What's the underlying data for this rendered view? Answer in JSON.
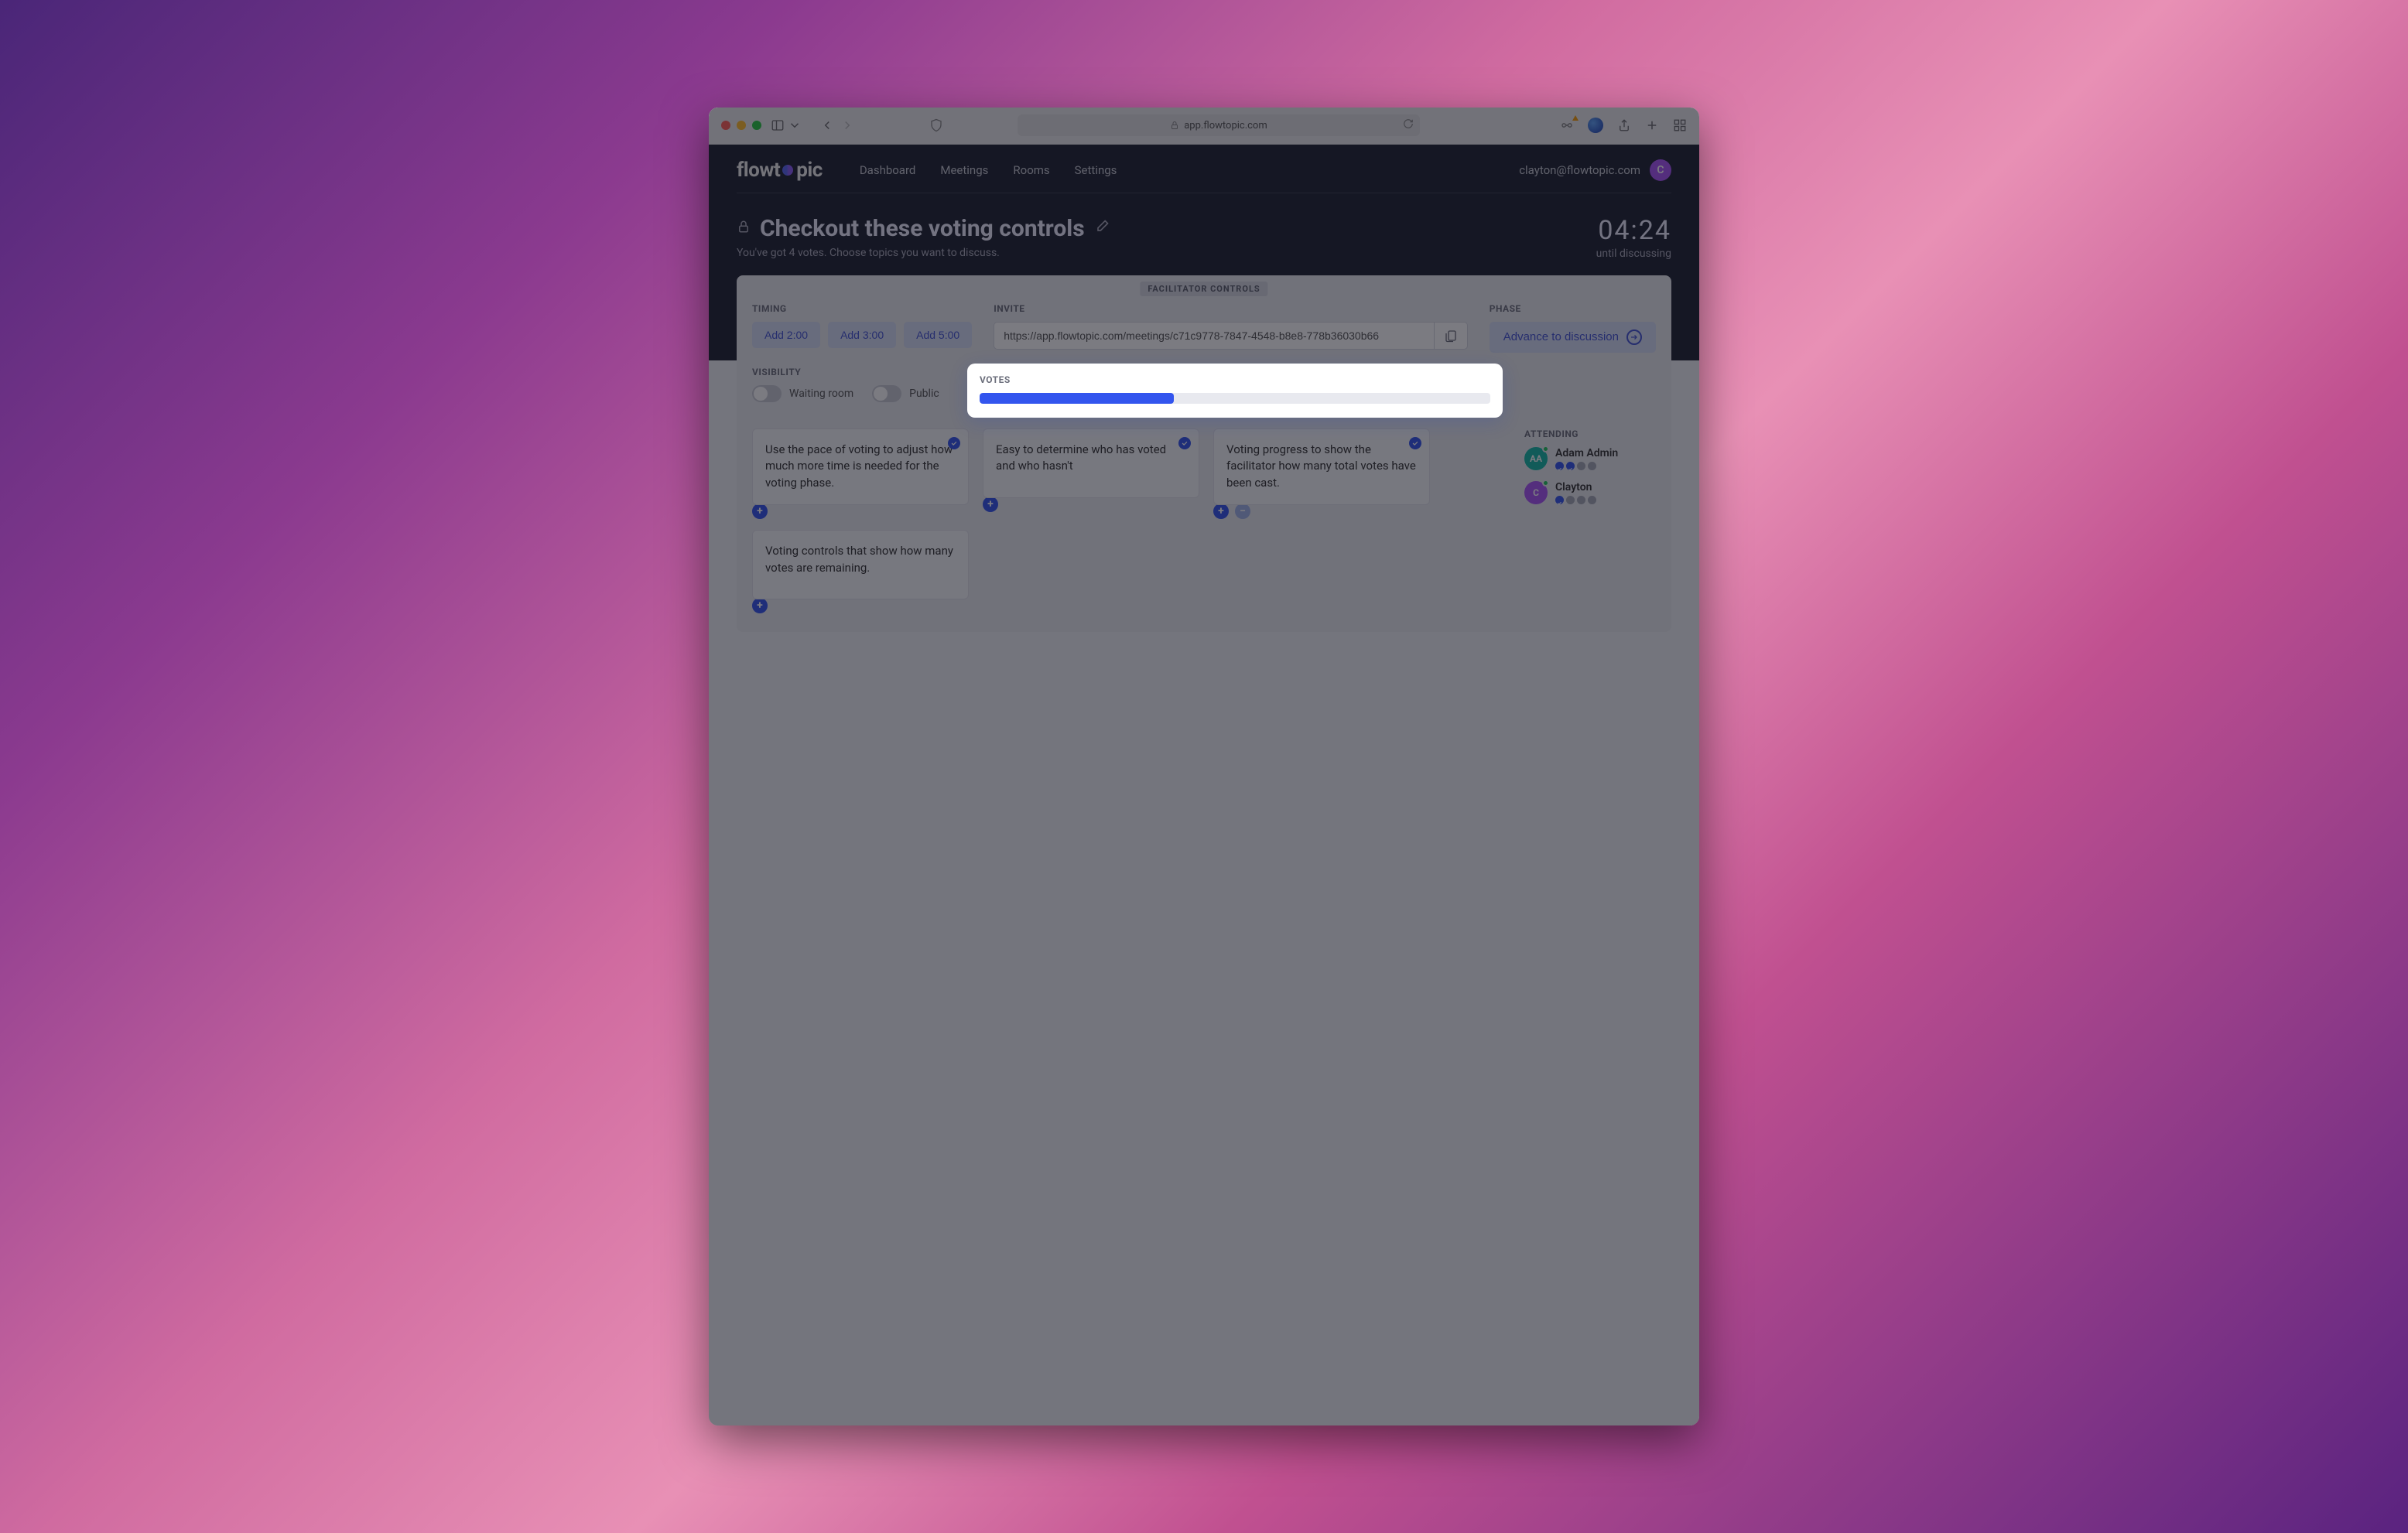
{
  "browser": {
    "url_host": "app.flowtopic.com"
  },
  "nav": {
    "logo_pre": "flowt",
    "logo_post": "pic",
    "links": [
      "Dashboard",
      "Meetings",
      "Rooms",
      "Settings"
    ],
    "user_email": "clayton@flowtopic.com",
    "user_initial": "C"
  },
  "header": {
    "title": "Checkout these voting controls",
    "subtitle": "You've got 4 votes. Choose topics you want to discuss.",
    "timer_value": "04:24",
    "timer_label": "until discussing"
  },
  "controls": {
    "facilitator_tag": "FACILITATOR CONTROLS",
    "timing_label": "TIMING",
    "timing_buttons": [
      "Add 2:00",
      "Add 3:00",
      "Add 5:00"
    ],
    "invite_label": "INVITE",
    "invite_url": "https://app.flowtopic.com/meetings/c71c9778-7847-4548-b8e8-778b36030b66",
    "phase_label": "PHASE",
    "phase_button": "Advance to discussion",
    "visibility_label": "VISIBILITY",
    "toggle_waiting": "Waiting room",
    "toggle_public": "Public",
    "votes_label": "VOTES",
    "votes_progress_pct": 38
  },
  "cards": {
    "col1": [
      {
        "text": "Use the pace of voting to adjust how much more time is needed for the voting phase.",
        "checked": true,
        "minus": false
      },
      {
        "text": "Voting controls that show how many votes are remaining.",
        "checked": false,
        "minus": false
      }
    ],
    "col2": [
      {
        "text": "Easy to determine who has voted and who hasn't",
        "checked": true,
        "minus": false
      }
    ],
    "col3": [
      {
        "text": "Voting progress to show the facilitator how many total votes have been cast.",
        "checked": true,
        "minus": true
      }
    ]
  },
  "attending": {
    "label": "ATTENDING",
    "people": [
      {
        "name": "Adam Admin",
        "initials": "AA",
        "avatar_bg": "#14b8a6",
        "votes": [
          true,
          true,
          false,
          false
        ]
      },
      {
        "name": "Clayton",
        "initials": "C",
        "avatar_bg": "#a855f7",
        "votes": [
          true,
          false,
          false,
          false
        ]
      }
    ]
  },
  "colors": {
    "accent": "#3355ee",
    "accent_light": "#d6ddf5"
  }
}
